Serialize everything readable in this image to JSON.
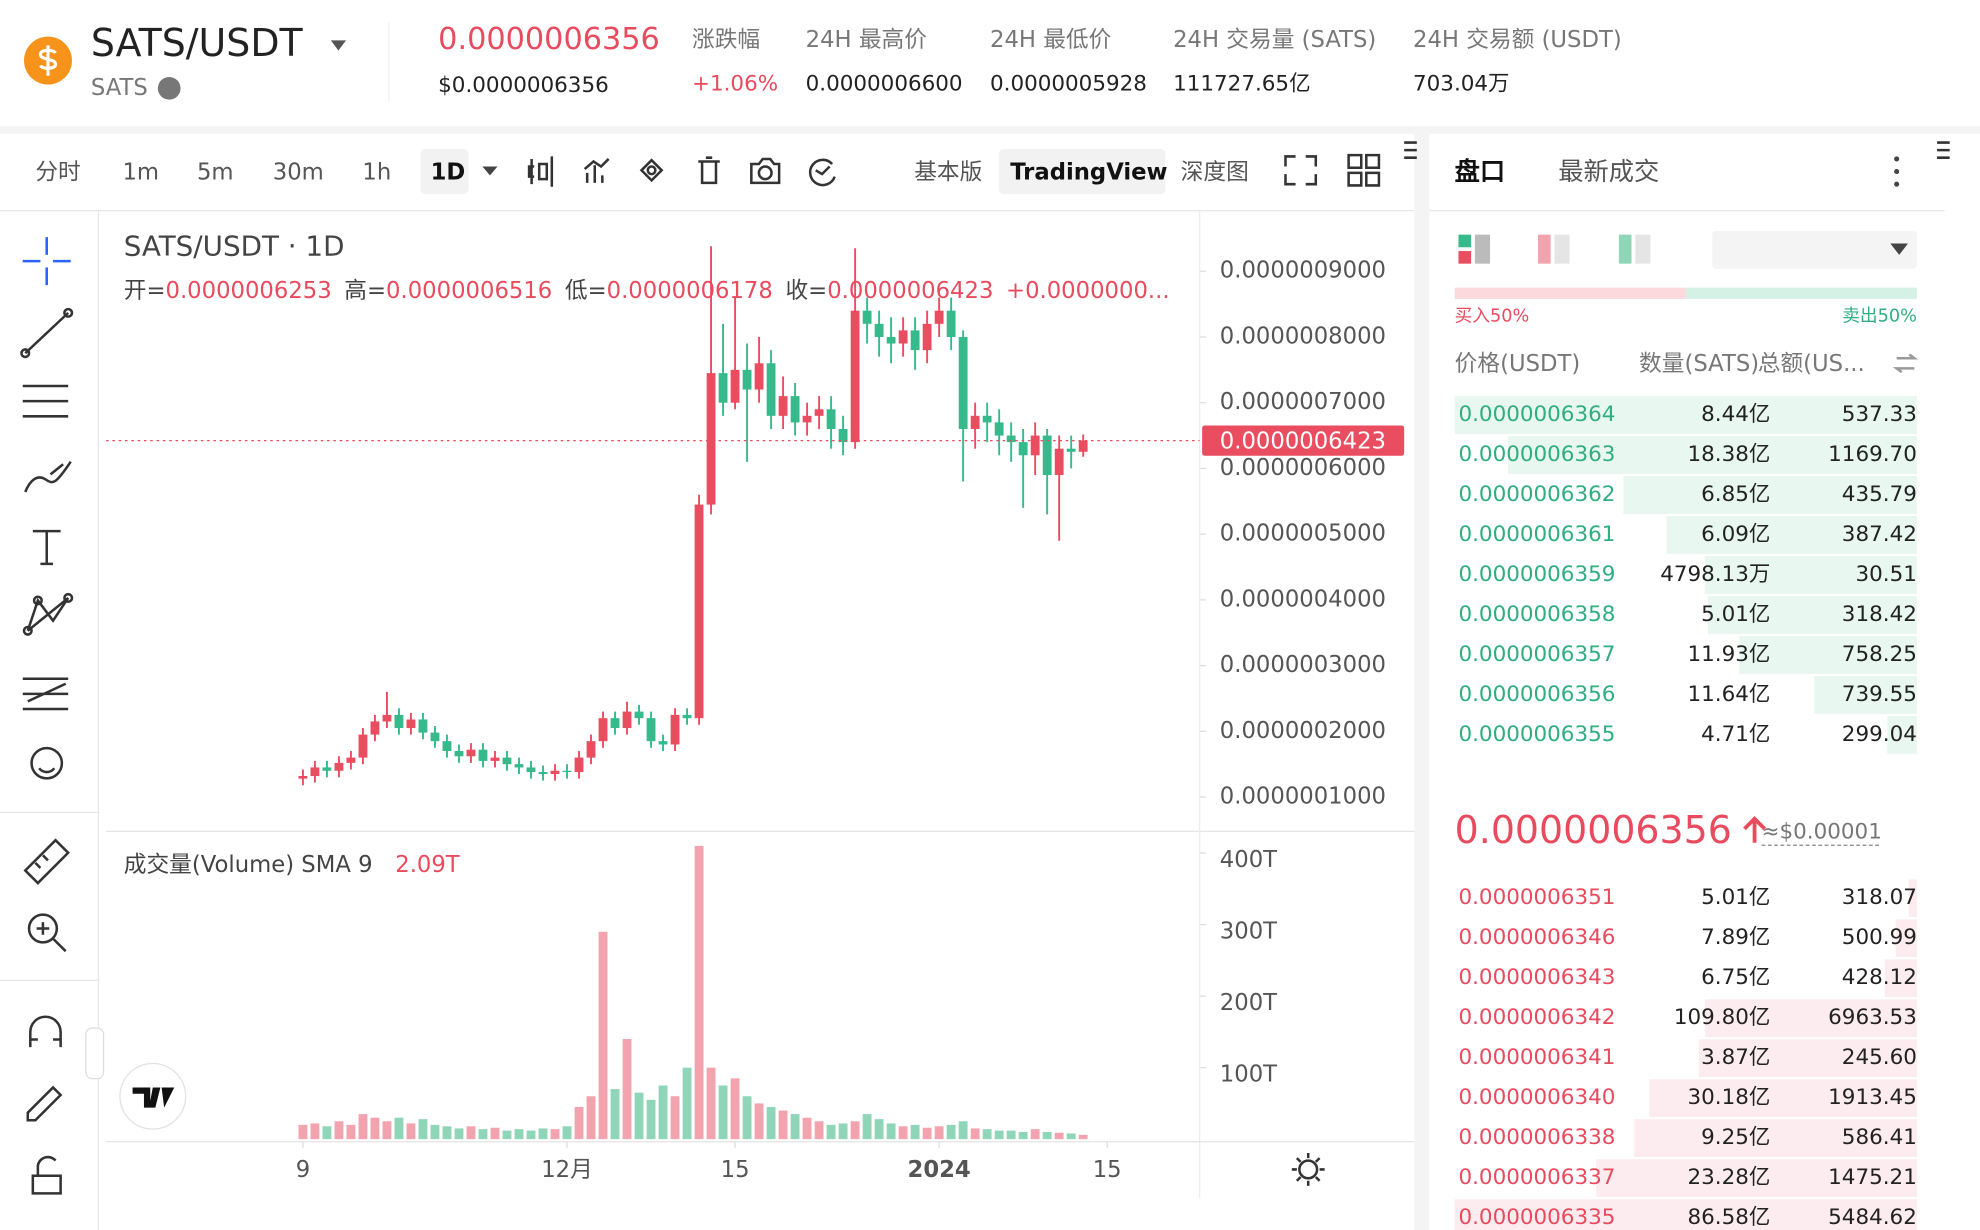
{
  "header": {
    "symbol": "SATS/USDT",
    "base": "SATS",
    "price": "0.0000006356",
    "price_usd": "$0.0000006356",
    "stats": [
      {
        "label": "涨跌幅",
        "value": "+1.06%"
      },
      {
        "label": "24H 最高价",
        "value": "0.0000006600"
      },
      {
        "label": "24H 最低价",
        "value": "0.0000005928"
      },
      {
        "label": "24H 交易量 (SATS)",
        "value": "111727.65亿"
      },
      {
        "label": "24H 交易额 (USDT)",
        "value": "703.04万"
      }
    ]
  },
  "toolbar": {
    "intervals": [
      "分时",
      "1m",
      "5m",
      "30m",
      "1h",
      "1D"
    ],
    "views": [
      "基本版",
      "TradingView",
      "深度图"
    ]
  },
  "legend": {
    "title": "SATS/USDT · 1D",
    "ohlc": [
      {
        "label": "开=",
        "value": "0.0000006253"
      },
      {
        "label": "高=",
        "value": "0.0000006516"
      },
      {
        "label": "低=",
        "value": "0.0000006178"
      },
      {
        "label": "收=",
        "value": "0.0000006423"
      }
    ],
    "change": "+0.0000000...",
    "current_price_label": "0.0000006423",
    "volume_title": "成交量(Volume) SMA 9",
    "volume_value": "2.09T"
  },
  "chart_data": {
    "type": "candlestick",
    "up_color": "#ea4d5f",
    "down_color": "#36b98b",
    "volume_up_color": "#f3a3ad",
    "volume_down_color": "#8fd5b8",
    "xlim": [
      -16.4,
      74.7
    ],
    "xticks": [
      {
        "value": 0,
        "label": "9"
      },
      {
        "value": 22,
        "label": "12月"
      },
      {
        "value": 36,
        "label": "15"
      },
      {
        "value": 53,
        "label": "2024"
      },
      {
        "value": 67,
        "label": "15"
      }
    ],
    "ylim": [
      4.97e-08,
      9.864e-07
    ],
    "yticks": [
      {
        "value": 1e-07,
        "label": "0.0000001000"
      },
      {
        "value": 2e-07,
        "label": "0.0000002000"
      },
      {
        "value": 3e-07,
        "label": "0.0000003000"
      },
      {
        "value": 4e-07,
        "label": "0.0000004000"
      },
      {
        "value": 5e-07,
        "label": "0.0000005000"
      },
      {
        "value": 6e-07,
        "label": "0.0000006000"
      },
      {
        "value": 7e-07,
        "label": "0.0000007000"
      },
      {
        "value": 8e-07,
        "label": "0.0000008000"
      },
      {
        "value": 9e-07,
        "label": "0.0000009000"
      }
    ],
    "y2lim": [
      0,
      425000000000000.0
    ],
    "y2ticks": [
      {
        "value": 100000000000000.0,
        "label": "100T"
      },
      {
        "value": 200000000000000.0,
        "label": "200T"
      },
      {
        "value": 300000000000000.0,
        "label": "300T"
      },
      {
        "value": 400000000000000.0,
        "label": "400T"
      }
    ],
    "open": [
      1.28e-07,
      1.32e-07,
      1.45e-07,
      1.4e-07,
      1.52e-07,
      1.6e-07,
      1.95e-07,
      2.15e-07,
      2.25e-07,
      2.05e-07,
      2.18e-07,
      1.98e-07,
      1.85e-07,
      1.7e-07,
      1.62e-07,
      1.72e-07,
      1.55e-07,
      1.6e-07,
      1.5e-07,
      1.45e-07,
      1.38e-07,
      1.35e-07,
      1.4e-07,
      1.38e-07,
      1.6e-07,
      1.85e-07,
      2.2e-07,
      2.05e-07,
      2.3e-07,
      2.2e-07,
      1.85e-07,
      1.8e-07,
      2.25e-07,
      2.2e-07,
      5.45e-07,
      7.45e-07,
      7e-07,
      7.5e-07,
      7.2e-07,
      7.6e-07,
      6.8e-07,
      7.1e-07,
      6.7e-07,
      6.8e-07,
      6.9e-07,
      6.6e-07,
      6.4e-07,
      8.4e-07,
      8.2e-07,
      8e-07,
      7.9e-07,
      8.1e-07,
      7.8e-07,
      8.2e-07,
      8.4e-07,
      8e-07,
      6.6e-07,
      6.8e-07,
      6.7e-07,
      6.5e-07,
      6.4e-07,
      6.2e-07,
      6.5e-07,
      5.9e-07,
      6.3e-07,
      6.253e-07
    ],
    "high": [
      1.42e-07,
      1.55e-07,
      1.55e-07,
      1.62e-07,
      1.7e-07,
      2.05e-07,
      2.25e-07,
      2.6e-07,
      2.35e-07,
      2.28e-07,
      2.28e-07,
      2.08e-07,
      1.95e-07,
      1.8e-07,
      1.82e-07,
      1.82e-07,
      1.7e-07,
      1.7e-07,
      1.6e-07,
      1.55e-07,
      1.48e-07,
      1.5e-07,
      1.5e-07,
      1.7e-07,
      1.95e-07,
      2.3e-07,
      2.3e-07,
      2.45e-07,
      2.4e-07,
      2.3e-07,
      1.95e-07,
      2.35e-07,
      2.35e-07,
      5.6e-07,
      9.38e-07,
      8.2e-07,
      8.6e-07,
      7.9e-07,
      8e-07,
      7.8e-07,
      7.4e-07,
      7.3e-07,
      7e-07,
      7.1e-07,
      7.1e-07,
      6.8e-07,
      9.35e-07,
      8.6e-07,
      8.4e-07,
      8.3e-07,
      8.3e-07,
      8.3e-07,
      8.4e-07,
      8.6e-07,
      8.6e-07,
      8.1e-07,
      7e-07,
      7e-07,
      6.9e-07,
      6.7e-07,
      6.6e-07,
      6.7e-07,
      6.6e-07,
      6.5e-07,
      6.5e-07,
      6.516e-07
    ],
    "low": [
      1.18e-07,
      1.22e-07,
      1.3e-07,
      1.3e-07,
      1.42e-07,
      1.5e-07,
      1.85e-07,
      2.05e-07,
      1.95e-07,
      1.95e-07,
      1.88e-07,
      1.75e-07,
      1.6e-07,
      1.52e-07,
      1.52e-07,
      1.45e-07,
      1.45e-07,
      1.4e-07,
      1.35e-07,
      1.28e-07,
      1.25e-07,
      1.25e-07,
      1.28e-07,
      1.28e-07,
      1.5e-07,
      1.75e-07,
      1.95e-07,
      1.95e-07,
      2.1e-07,
      1.75e-07,
      1.7e-07,
      1.7e-07,
      2.1e-07,
      2.1e-07,
      5.3e-07,
      6.8e-07,
      6.9e-07,
      6.1e-07,
      7e-07,
      6.6e-07,
      6.6e-07,
      6.5e-07,
      6.5e-07,
      6.6e-07,
      6.3e-07,
      6.2e-07,
      6.3e-07,
      7.9e-07,
      7.7e-07,
      7.6e-07,
      7.7e-07,
      7.5e-07,
      7.6e-07,
      8e-07,
      7.8e-07,
      5.8e-07,
      6.3e-07,
      6.4e-07,
      6.2e-07,
      6.1e-07,
      5.4e-07,
      5.9e-07,
      5.3e-07,
      4.9e-07,
      6e-07,
      6.178e-07
    ],
    "close": [
      1.32e-07,
      1.45e-07,
      1.4e-07,
      1.52e-07,
      1.6e-07,
      1.95e-07,
      2.15e-07,
      2.25e-07,
      2.05e-07,
      2.18e-07,
      1.98e-07,
      1.85e-07,
      1.7e-07,
      1.62e-07,
      1.72e-07,
      1.55e-07,
      1.6e-07,
      1.5e-07,
      1.45e-07,
      1.38e-07,
      1.35e-07,
      1.4e-07,
      1.38e-07,
      1.6e-07,
      1.85e-07,
      2.2e-07,
      2.05e-07,
      2.3e-07,
      2.2e-07,
      1.85e-07,
      1.8e-07,
      2.25e-07,
      2.2e-07,
      5.45e-07,
      7.45e-07,
      7e-07,
      7.5e-07,
      7.2e-07,
      7.6e-07,
      6.8e-07,
      7.1e-07,
      6.7e-07,
      6.8e-07,
      6.9e-07,
      6.6e-07,
      6.4e-07,
      8.4e-07,
      8.2e-07,
      8e-07,
      7.9e-07,
      8.1e-07,
      7.8e-07,
      8.2e-07,
      8.4e-07,
      8e-07,
      6.6e-07,
      6.8e-07,
      6.7e-07,
      6.5e-07,
      6.4e-07,
      6.2e-07,
      6.5e-07,
      5.9e-07,
      6.3e-07,
      6.253e-07,
      6.423e-07
    ],
    "volume": [
      20000000000000.0,
      22000000000000.0,
      18000000000000.0,
      25000000000000.0,
      20000000000000.0,
      35000000000000.0,
      30000000000000.0,
      25000000000000.0,
      30000000000000.0,
      22000000000000.0,
      28000000000000.0,
      20000000000000.0,
      18000000000000.0,
      15000000000000.0,
      18000000000000.0,
      14000000000000.0,
      16000000000000.0,
      12000000000000.0,
      14000000000000.0,
      12000000000000.0,
      15000000000000.0,
      14000000000000.0,
      18000000000000.0,
      45000000000000.0,
      60000000000000.0,
      290000000000000.0,
      70000000000000.0,
      140000000000000.0,
      65000000000000.0,
      55000000000000.0,
      75000000000000.0,
      60000000000000.0,
      100000000000000.0,
      410000000000000.0,
      100000000000000.0,
      75000000000000.0,
      85000000000000.0,
      60000000000000.0,
      50000000000000.0,
      45000000000000.0,
      40000000000000.0,
      35000000000000.0,
      30000000000000.0,
      25000000000000.0,
      20000000000000.0,
      22000000000000.0,
      25000000000000.0,
      35000000000000.0,
      28000000000000.0,
      22000000000000.0,
      18000000000000.0,
      20000000000000.0,
      16000000000000.0,
      18000000000000.0,
      20000000000000.0,
      25000000000000.0,
      15000000000000.0,
      14000000000000.0,
      12000000000000.0,
      12000000000000.0,
      10000000000000.0,
      14000000000000.0,
      10000000000000.0,
      9000000000000.0,
      8000000000000.0,
      6000000000000.0
    ]
  },
  "orderbook": {
    "tabs": [
      "盘口",
      "最新成交"
    ],
    "precision": "0.0000000001",
    "buy_ratio": "买入50%",
    "sell_ratio": "卖出50%",
    "columns": [
      "价格(USDT)",
      "数量(SATS)",
      "总额(US..."
    ],
    "asks": [
      [
        "0.0000006364",
        "8.44亿",
        "537.33"
      ],
      [
        "0.0000006363",
        "18.38亿",
        "1169.70"
      ],
      [
        "0.0000006362",
        "6.85亿",
        "435.79"
      ],
      [
        "0.0000006361",
        "6.09亿",
        "387.42"
      ],
      [
        "0.0000006359",
        "4798.13万",
        "30.51"
      ],
      [
        "0.0000006358",
        "5.01亿",
        "318.42"
      ],
      [
        "0.0000006357",
        "11.93亿",
        "758.25"
      ],
      [
        "0.0000006356",
        "11.64亿",
        "739.55"
      ],
      [
        "0.0000006355",
        "4.71亿",
        "299.04"
      ]
    ],
    "last_price": "0.0000006356",
    "last_price_usd": "≈$0.00001",
    "bids": [
      [
        "0.0000006351",
        "5.01亿",
        "318.07"
      ],
      [
        "0.0000006346",
        "7.89亿",
        "500.99"
      ],
      [
        "0.0000006343",
        "6.75亿",
        "428.12"
      ],
      [
        "0.0000006342",
        "109.80亿",
        "6963.53"
      ],
      [
        "0.0000006341",
        "3.87亿",
        "245.60"
      ],
      [
        "0.0000006340",
        "30.18亿",
        "1913.45"
      ],
      [
        "0.0000006338",
        "9.25亿",
        "586.41"
      ],
      [
        "0.0000006337",
        "23.28亿",
        "1475.21"
      ],
      [
        "0.0000006335",
        "86.58亿",
        "5484.62"
      ]
    ]
  }
}
